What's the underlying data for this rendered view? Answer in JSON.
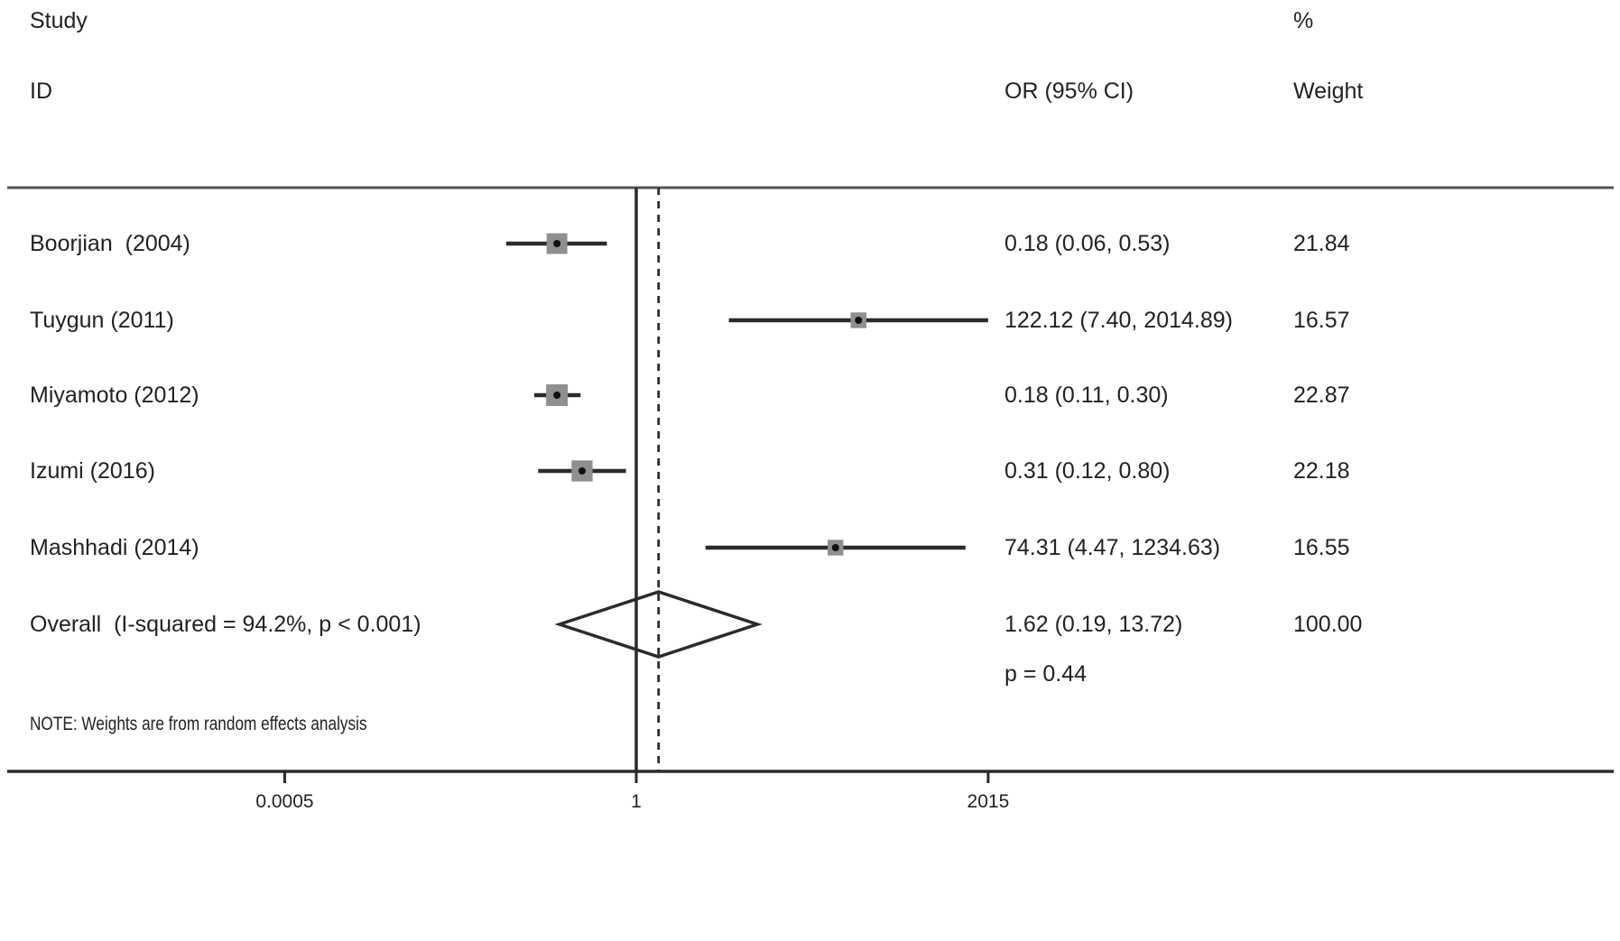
{
  "header": {
    "study_line1": "Study",
    "study_line2": "ID",
    "or_col": "OR (95% CI)",
    "weight_line1": "%",
    "weight_line2": "Weight"
  },
  "note": "NOTE: Weights are from random effects analysis",
  "chart_data": {
    "type": "forest",
    "title": "",
    "x_scale": "log",
    "x_ticks": [
      0.0005,
      1,
      2015
    ],
    "x_tick_labels": [
      "0.0005",
      "1",
      "2015"
    ],
    "null_line_x": 1,
    "overall_dashed_x": 1.62,
    "colors": {
      "marker": "#8f8f8f",
      "line": "#2b2b2b",
      "text": "#222222"
    },
    "studies": [
      {
        "label": "Boorjian  (2004)",
        "or": 0.18,
        "ci_low": 0.06,
        "ci_high": 0.53,
        "or_text": "0.18 (0.06, 0.53)",
        "weight": 21.84,
        "weight_text": "21.84"
      },
      {
        "label": "Tuygun (2011)",
        "or": 122.12,
        "ci_low": 7.4,
        "ci_high": 2014.89,
        "or_text": "122.12 (7.40, 2014.89)",
        "weight": 16.57,
        "weight_text": "16.57"
      },
      {
        "label": "Miyamoto (2012)",
        "or": 0.18,
        "ci_low": 0.11,
        "ci_high": 0.3,
        "or_text": "0.18 (0.11, 0.30)",
        "weight": 22.87,
        "weight_text": "22.87"
      },
      {
        "label": "Izumi (2016)",
        "or": 0.31,
        "ci_low": 0.12,
        "ci_high": 0.8,
        "or_text": "0.31 (0.12, 0.80)",
        "weight": 22.18,
        "weight_text": "22.18"
      },
      {
        "label": "Mashhadi (2014)",
        "or": 74.31,
        "ci_low": 4.47,
        "ci_high": 1234.63,
        "or_text": "74.31 (4.47, 1234.63)",
        "weight": 16.55,
        "weight_text": "16.55"
      }
    ],
    "overall": {
      "label": "Overall  (I-squared = 94.2%, p < 0.001)",
      "or": 1.62,
      "ci_low": 0.19,
      "ci_high": 13.72,
      "or_text": "1.62 (0.19, 13.72)",
      "weight_text": "100.00",
      "p_text": "p = 0.44"
    }
  }
}
